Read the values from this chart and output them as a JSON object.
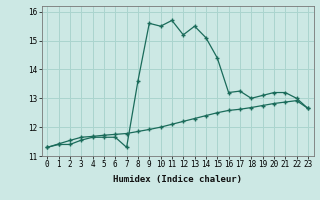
{
  "xlabel": "Humidex (Indice chaleur)",
  "background_color": "#cce8e4",
  "grid_color": "#aad4ce",
  "line_color": "#1a6b5a",
  "x_values": [
    0,
    1,
    2,
    3,
    4,
    5,
    6,
    7,
    8,
    9,
    10,
    11,
    12,
    13,
    14,
    15,
    16,
    17,
    18,
    19,
    20,
    21,
    22,
    23
  ],
  "line1_y": [
    11.3,
    11.4,
    11.4,
    11.55,
    11.65,
    11.65,
    11.65,
    11.3,
    13.6,
    15.6,
    15.5,
    15.7,
    15.2,
    15.5,
    15.1,
    14.4,
    13.2,
    13.25,
    13.0,
    13.1,
    13.2,
    13.2,
    13.0,
    12.65
  ],
  "line2_y": [
    11.3,
    11.42,
    11.54,
    11.65,
    11.68,
    11.72,
    11.75,
    11.78,
    11.85,
    11.92,
    12.0,
    12.1,
    12.2,
    12.3,
    12.4,
    12.5,
    12.58,
    12.62,
    12.68,
    12.75,
    12.82,
    12.87,
    12.92,
    12.65
  ],
  "ylim": [
    11.0,
    16.2
  ],
  "xlim": [
    -0.5,
    23.5
  ],
  "yticks": [
    11,
    12,
    13,
    14,
    15,
    16
  ],
  "xticks": [
    0,
    1,
    2,
    3,
    4,
    5,
    6,
    7,
    8,
    9,
    10,
    11,
    12,
    13,
    14,
    15,
    16,
    17,
    18,
    19,
    20,
    21,
    22,
    23
  ],
  "tick_fontsize": 5.5,
  "xlabel_fontsize": 6.5
}
